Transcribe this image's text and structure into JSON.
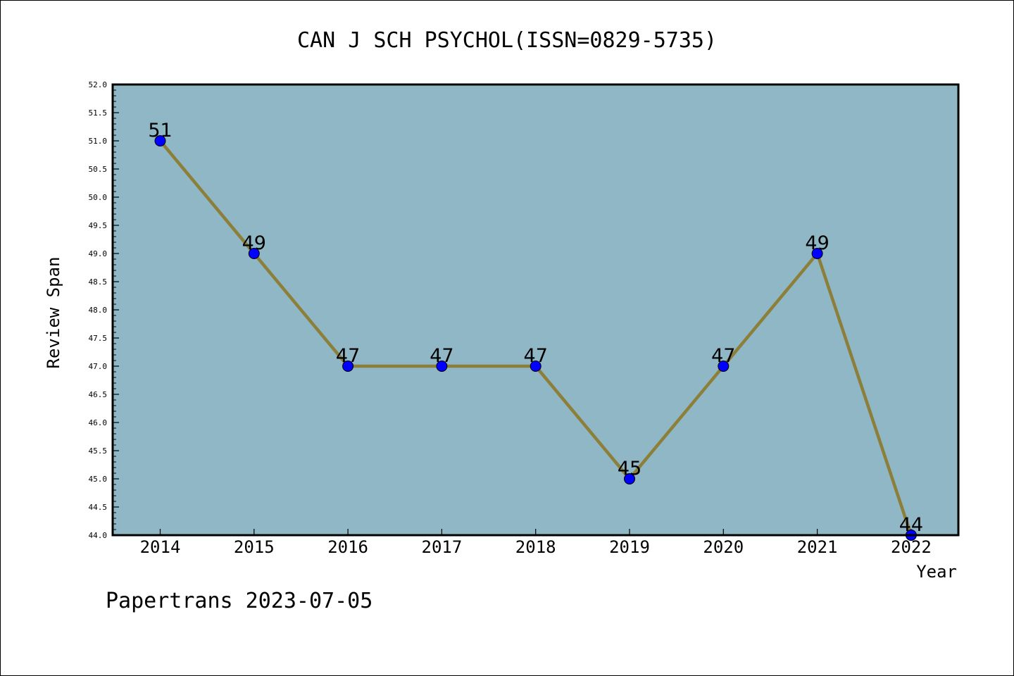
{
  "chart_data": {
    "type": "line",
    "title": "CAN J SCH PSYCHOL(ISSN=0829-5735)",
    "xlabel": "Year",
    "ylabel": "Review Span",
    "categories": [
      "2014",
      "2015",
      "2016",
      "2017",
      "2018",
      "2019",
      "2020",
      "2021",
      "2022"
    ],
    "series": [
      {
        "values": [
          51,
          49,
          47,
          47,
          47,
          45,
          47,
          49,
          44
        ]
      }
    ],
    "data_labels": [
      "51",
      "49",
      "47",
      "47",
      "47",
      "45",
      "47",
      "49",
      "44"
    ],
    "ylim": [
      44.0,
      52.0
    ],
    "yticks": [
      "44.0",
      "44.5",
      "45.0",
      "45.5",
      "46.0",
      "46.5",
      "47.0",
      "47.5",
      "48.0",
      "48.5",
      "49.0",
      "49.5",
      "50.0",
      "50.5",
      "51.0",
      "51.5",
      "52.0"
    ],
    "grid": false,
    "colors": {
      "plot_background": "#8fb7c5",
      "line": "#8c7f3a",
      "marker": "#0000ff"
    }
  },
  "footer": "Papertrans 2023-07-05"
}
